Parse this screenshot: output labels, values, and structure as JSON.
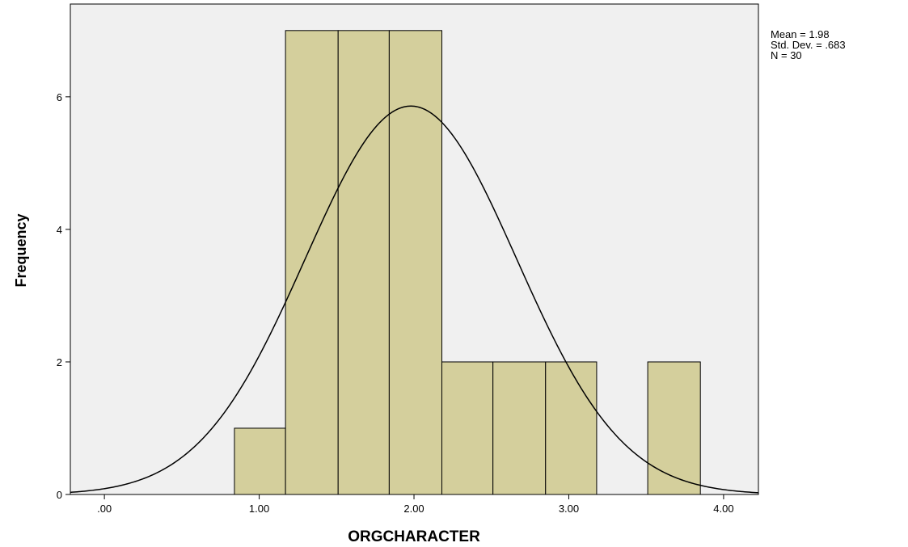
{
  "chart_data": {
    "type": "histogram",
    "xlabel": "ORGCHARACTER",
    "ylabel": "Frequency",
    "bins": [
      0.84,
      1.17,
      1.51,
      1.84,
      2.18,
      2.51,
      2.85,
      3.18,
      3.51,
      3.85
    ],
    "counts": [
      1,
      7,
      7,
      7,
      2,
      2,
      2,
      0,
      2
    ],
    "color": "#d4cf9c",
    "xlim": [
      -0.22,
      4.225
    ],
    "xticks": [
      {
        "value": 0,
        "label": ".00"
      },
      {
        "value": 1,
        "label": "1.00"
      },
      {
        "value": 2,
        "label": "2.00"
      },
      {
        "value": 3,
        "label": "3.00"
      },
      {
        "value": 4,
        "label": "4.00"
      }
    ],
    "ylim": [
      0,
      7.4
    ],
    "yticks": [
      0,
      2,
      4,
      6
    ],
    "stats": [
      {
        "label": "Mean = 1.98",
        "value": 1.98
      },
      {
        "label": "Std. Dev. = .683",
        "value": 0.683
      },
      {
        "label": "N = 30",
        "value": 30
      }
    ],
    "normal_curve": true
  }
}
